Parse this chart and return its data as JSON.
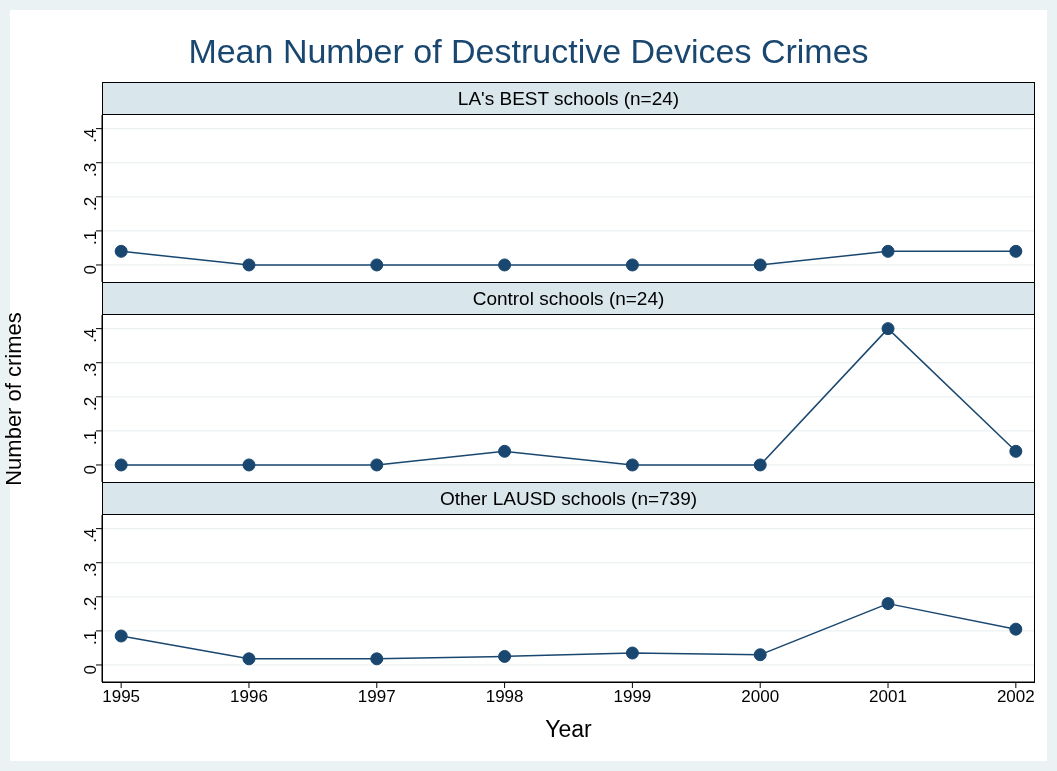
{
  "chart_data": [
    {
      "type": "line",
      "title": "Mean Number of Destructive Devices Crimes",
      "subtitle": "LA's BEST schools (n=24)",
      "x": [
        1995,
        1996,
        1997,
        1998,
        1999,
        2000,
        2001,
        2002
      ],
      "series": [
        {
          "color": "#1a476f",
          "values": [
            0.04,
            0,
            0,
            0,
            0,
            0,
            0.04,
            0.04
          ]
        }
      ],
      "xlim": [
        1994.85,
        2002.15
      ],
      "xticks": [
        1995,
        1996,
        1997,
        1998,
        1999,
        2000,
        2001,
        2002
      ],
      "ylim": [
        -0.05,
        0.44
      ],
      "yticks": [
        {
          "value": 0,
          "label": "0"
        },
        {
          "value": 0.1,
          "label": ".1"
        },
        {
          "value": 0.2,
          "label": ".2"
        },
        {
          "value": 0.3,
          "label": ".3"
        },
        {
          "value": 0.4,
          "label": ".4"
        }
      ],
      "grid": "y",
      "marker": "circle",
      "tick_labels": "y"
    },
    {
      "type": "line",
      "subtitle": "Control schools (n=24)",
      "ylabel": "Number of crimes",
      "x": [
        1995,
        1996,
        1997,
        1998,
        1999,
        2000,
        2001,
        2002
      ],
      "series": [
        {
          "color": "#1a476f",
          "values": [
            0,
            0,
            0,
            0.04,
            0,
            0,
            0.4,
            0.04
          ]
        }
      ],
      "xlim": [
        1994.85,
        2002.15
      ],
      "xticks": [
        1995,
        1996,
        1997,
        1998,
        1999,
        2000,
        2001,
        2002
      ],
      "ylim": [
        -0.05,
        0.44
      ],
      "yticks": [
        {
          "value": 0,
          "label": "0"
        },
        {
          "value": 0.1,
          "label": ".1"
        },
        {
          "value": 0.2,
          "label": ".2"
        },
        {
          "value": 0.3,
          "label": ".3"
        },
        {
          "value": 0.4,
          "label": ".4"
        }
      ],
      "grid": "y",
      "marker": "circle",
      "tick_labels": "y"
    },
    {
      "type": "line",
      "subtitle": "Other LAUSD schools (n=739)",
      "xlabel": "Year",
      "x": [
        1995,
        1996,
        1997,
        1998,
        1999,
        2000,
        2001,
        2002
      ],
      "series": [
        {
          "color": "#1a476f",
          "values": [
            0.085,
            0.018,
            0.018,
            0.025,
            0.035,
            0.03,
            0.18,
            0.105
          ]
        }
      ],
      "xlim": [
        1994.85,
        2002.15
      ],
      "xticks": [
        1995,
        1996,
        1997,
        1998,
        1999,
        2000,
        2001,
        2002
      ],
      "ylim": [
        -0.05,
        0.44
      ],
      "yticks": [
        {
          "value": 0,
          "label": "0"
        },
        {
          "value": 0.1,
          "label": ".1"
        },
        {
          "value": 0.2,
          "label": ".2"
        },
        {
          "value": 0.3,
          "label": ".3"
        },
        {
          "value": 0.4,
          "label": ".4"
        }
      ],
      "grid": "y",
      "marker": "circle"
    }
  ]
}
